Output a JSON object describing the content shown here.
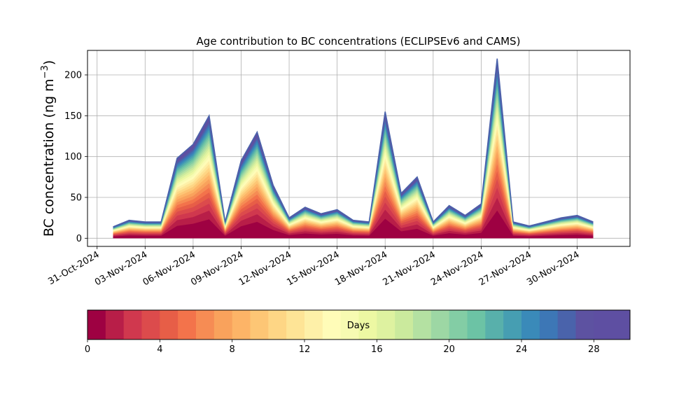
{
  "chart_data": {
    "type": "area",
    "title": "Age contribution to BC concentrations (ECLIPSEv6 and CAMS)",
    "ylabel": "BC concentration (ng m",
    "ylabel_sup": "−3",
    "ylabel_close": ")",
    "xlabel": "",
    "ylim": [
      -10,
      230
    ],
    "xlim": [
      "2024-10-31",
      "2024-12-03"
    ],
    "grid": true,
    "x_ticks": [
      "31-Oct-2024",
      "03-Nov-2024",
      "06-Nov-2024",
      "09-Nov-2024",
      "12-Nov-2024",
      "15-Nov-2024",
      "18-Nov-2024",
      "21-Nov-2024",
      "24-Nov-2024",
      "27-Nov-2024",
      "30-Nov-2024"
    ],
    "y_ticks": [
      0,
      50,
      100,
      150,
      200
    ],
    "total_concentration_by_day": {
      "x": [
        "2024-11-01",
        "2024-11-02",
        "2024-11-03",
        "2024-11-04",
        "2024-11-05",
        "2024-11-06",
        "2024-11-07",
        "2024-11-08",
        "2024-11-09",
        "2024-11-10",
        "2024-11-11",
        "2024-11-12",
        "2024-11-13",
        "2024-11-14",
        "2024-11-15",
        "2024-11-16",
        "2024-11-17",
        "2024-11-18",
        "2024-11-19",
        "2024-11-20",
        "2024-11-21",
        "2024-11-22",
        "2024-11-23",
        "2024-11-24",
        "2024-11-25",
        "2024-11-26",
        "2024-11-27",
        "2024-11-28",
        "2024-11-29",
        "2024-11-30",
        "2024-12-01"
      ],
      "y": [
        14,
        22,
        20,
        20,
        98,
        115,
        150,
        20,
        95,
        130,
        65,
        25,
        38,
        30,
        35,
        22,
        20,
        155,
        55,
        75,
        20,
        40,
        28,
        42,
        220,
        20,
        15,
        20,
        25,
        28,
        20
      ]
    },
    "colorbar": {
      "label": "Days",
      "min": 0,
      "max": 30,
      "n_bins": 30,
      "ticks": [
        0,
        4,
        8,
        12,
        16,
        20,
        24,
        28
      ],
      "colors": [
        "#9e0142",
        "#b81e48",
        "#d0384e",
        "#dc4b4c",
        "#e75e47",
        "#f3734b",
        "#f68c54",
        "#f9a25c",
        "#fdb467",
        "#fdc675",
        "#fed685",
        "#fee496",
        "#fef0a8",
        "#fffcb8",
        "#f7fbb2",
        "#edf8a3",
        "#def2a0",
        "#cbea9d",
        "#b4e1a2",
        "#9dd7a4",
        "#83cda5",
        "#6cc3a5",
        "#58b0ab",
        "#469eb2",
        "#3a8ab9",
        "#3d77b6",
        "#4a63ab",
        "#5d52a1",
        "#5e4fa2",
        "#5e4fa2"
      ]
    }
  }
}
